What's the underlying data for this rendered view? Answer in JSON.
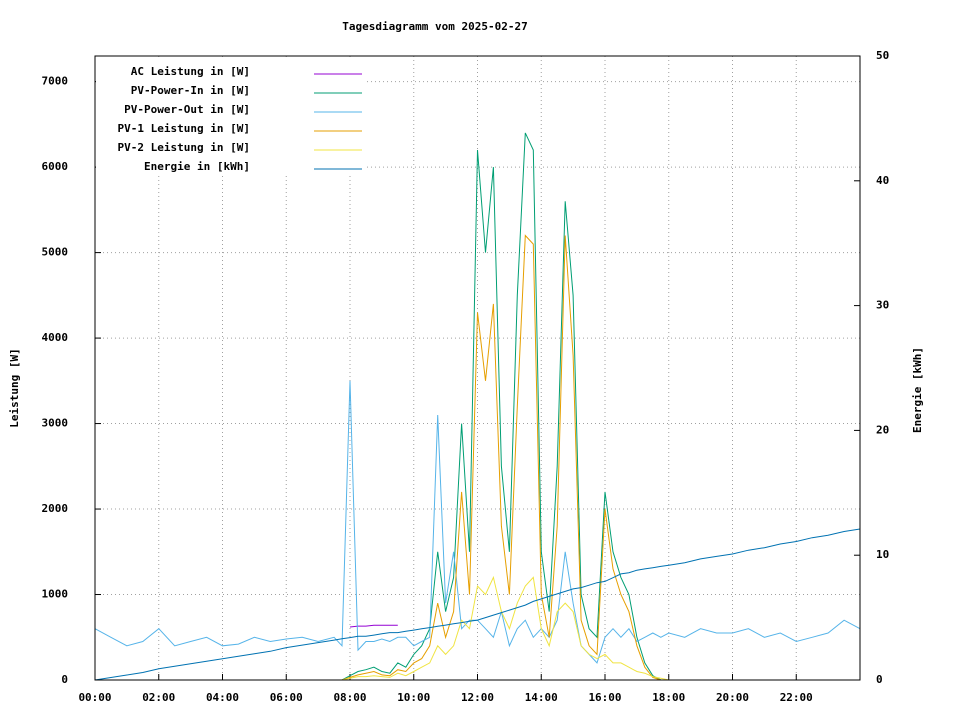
{
  "chart_data": {
    "type": "line",
    "title": "Tagesdiagramm vom 2025-02-27",
    "y_label": "Leistung [W]",
    "y2_label": "Energie [kWh]",
    "grid": true,
    "legend": "top-left",
    "xlim": [
      0,
      24
    ],
    "xticks": [
      {
        "value": 0,
        "label": "00:00"
      },
      {
        "value": 2,
        "label": "02:00"
      },
      {
        "value": 4,
        "label": "04:00"
      },
      {
        "value": 6,
        "label": "06:00"
      },
      {
        "value": 8,
        "label": "08:00"
      },
      {
        "value": 10,
        "label": "10:00"
      },
      {
        "value": 12,
        "label": "12:00"
      },
      {
        "value": 14,
        "label": "14:00"
      },
      {
        "value": 16,
        "label": "16:00"
      },
      {
        "value": 18,
        "label": "18:00"
      },
      {
        "value": 20,
        "label": "20:00"
      },
      {
        "value": 22,
        "label": "22:00"
      }
    ],
    "ylim": [
      0,
      7300
    ],
    "yticks": [
      0,
      1000,
      2000,
      3000,
      4000,
      5000,
      6000,
      7000
    ],
    "y2lim": [
      0,
      50
    ],
    "y2ticks": [
      0,
      10,
      20,
      30,
      40,
      50
    ],
    "x": [
      0,
      0.5,
      1,
      1.5,
      2,
      2.5,
      3,
      3.5,
      4,
      4.5,
      5,
      5.5,
      6,
      6.5,
      7,
      7.5,
      7.75,
      8,
      8.25,
      8.5,
      8.75,
      9,
      9.25,
      9.5,
      9.75,
      10,
      10.25,
      10.5,
      10.75,
      11,
      11.25,
      11.5,
      11.75,
      12,
      12.25,
      12.5,
      12.75,
      13,
      13.25,
      13.5,
      13.75,
      14,
      14.25,
      14.5,
      14.75,
      15,
      15.25,
      15.5,
      15.75,
      16,
      16.25,
      16.5,
      16.75,
      17,
      17.25,
      17.5,
      17.75,
      18,
      18.5,
      19,
      19.5,
      20,
      20.5,
      21,
      21.5,
      22,
      22.5,
      23,
      23.5,
      24
    ],
    "series": [
      {
        "name": "AC Leistung in [W]",
        "color": "#9400d3",
        "values": [
          null,
          null,
          null,
          null,
          null,
          null,
          null,
          null,
          null,
          null,
          null,
          null,
          null,
          null,
          null,
          null,
          null,
          620,
          630,
          630,
          640,
          640,
          640,
          640,
          null,
          null,
          null,
          null,
          null,
          null,
          null,
          null,
          null,
          null,
          null,
          null,
          null,
          null,
          null,
          null,
          null,
          null,
          null,
          null,
          null,
          null,
          null,
          null,
          null,
          null,
          null,
          null,
          null,
          null,
          null,
          null,
          null,
          null,
          null,
          null,
          null,
          null,
          null,
          null,
          null,
          null,
          null,
          null,
          null,
          null
        ]
      },
      {
        "name": "PV-Power-In in [W]",
        "color": "#009e73",
        "values": [
          0,
          0,
          0,
          0,
          0,
          0,
          0,
          0,
          0,
          0,
          0,
          0,
          0,
          0,
          0,
          0,
          0,
          50,
          100,
          120,
          150,
          100,
          80,
          200,
          150,
          300,
          400,
          600,
          1500,
          800,
          1200,
          3000,
          1500,
          6200,
          5000,
          6000,
          2500,
          1500,
          4500,
          6400,
          6200,
          1500,
          800,
          2500,
          5600,
          4500,
          1000,
          600,
          500,
          2200,
          1500,
          1200,
          1000,
          500,
          200,
          50,
          0,
          0,
          0,
          0,
          0,
          0,
          0,
          0,
          0,
          0,
          0,
          0,
          0,
          0
        ]
      },
      {
        "name": "PV-Power-Out in [W]",
        "color": "#56b4e9",
        "values": [
          600,
          500,
          400,
          450,
          600,
          400,
          450,
          500,
          400,
          420,
          500,
          450,
          480,
          500,
          450,
          500,
          400,
          3500,
          350,
          450,
          450,
          480,
          450,
          500,
          500,
          400,
          450,
          500,
          3100,
          900,
          1500,
          600,
          700,
          700,
          600,
          500,
          800,
          400,
          600,
          700,
          500,
          600,
          500,
          700,
          1500,
          900,
          400,
          300,
          200,
          500,
          600,
          500,
          600,
          450,
          500,
          550,
          500,
          550,
          500,
          600,
          550,
          550,
          600,
          500,
          550,
          450,
          500,
          550,
          700,
          600
        ]
      },
      {
        "name": "PV-1 Leistung in [W]",
        "color": "#e69f00",
        "values": [
          0,
          0,
          0,
          0,
          0,
          0,
          0,
          0,
          0,
          0,
          0,
          0,
          0,
          0,
          0,
          0,
          0,
          30,
          60,
          80,
          100,
          60,
          50,
          120,
          100,
          200,
          250,
          400,
          900,
          500,
          800,
          2200,
          1000,
          4300,
          3500,
          4400,
          1800,
          1000,
          3200,
          5200,
          5100,
          1000,
          500,
          1800,
          5200,
          3800,
          700,
          400,
          300,
          2000,
          1300,
          1000,
          800,
          400,
          150,
          30,
          0,
          0,
          0,
          0,
          0,
          0,
          0,
          0,
          0,
          0,
          0,
          0,
          0,
          0
        ]
      },
      {
        "name": "PV-2 Leistung in [W]",
        "color": "#f0e442",
        "values": [
          0,
          0,
          0,
          0,
          0,
          0,
          0,
          0,
          0,
          0,
          0,
          0,
          0,
          0,
          0,
          0,
          0,
          20,
          40,
          40,
          50,
          40,
          30,
          80,
          50,
          100,
          150,
          200,
          400,
          300,
          400,
          700,
          600,
          1100,
          1000,
          1200,
          800,
          600,
          900,
          1100,
          1200,
          600,
          400,
          800,
          900,
          800,
          400,
          300,
          250,
          300,
          200,
          200,
          150,
          100,
          80,
          40,
          20,
          0,
          0,
          0,
          0,
          0,
          0,
          0,
          0,
          0,
          0,
          0,
          0,
          0
        ]
      },
      {
        "name": "Energie in [kWh]",
        "color": "#0072b2",
        "axis": "y2",
        "values": [
          0,
          0.2,
          0.4,
          0.6,
          0.9,
          1.1,
          1.3,
          1.5,
          1.7,
          1.9,
          2.1,
          2.3,
          2.6,
          2.8,
          3.0,
          3.2,
          3.3,
          3.4,
          3.5,
          3.5,
          3.6,
          3.7,
          3.8,
          3.8,
          3.9,
          4.0,
          4.1,
          4.2,
          4.3,
          4.4,
          4.5,
          4.6,
          4.7,
          4.8,
          5.0,
          5.2,
          5.4,
          5.6,
          5.8,
          6.0,
          6.3,
          6.5,
          6.7,
          6.9,
          7.1,
          7.3,
          7.4,
          7.6,
          7.8,
          7.9,
          8.2,
          8.5,
          8.6,
          8.8,
          8.9,
          9.0,
          9.1,
          9.2,
          9.4,
          9.7,
          9.9,
          10.1,
          10.4,
          10.6,
          10.9,
          11.1,
          11.4,
          11.6,
          11.9,
          12.1
        ]
      }
    ]
  }
}
